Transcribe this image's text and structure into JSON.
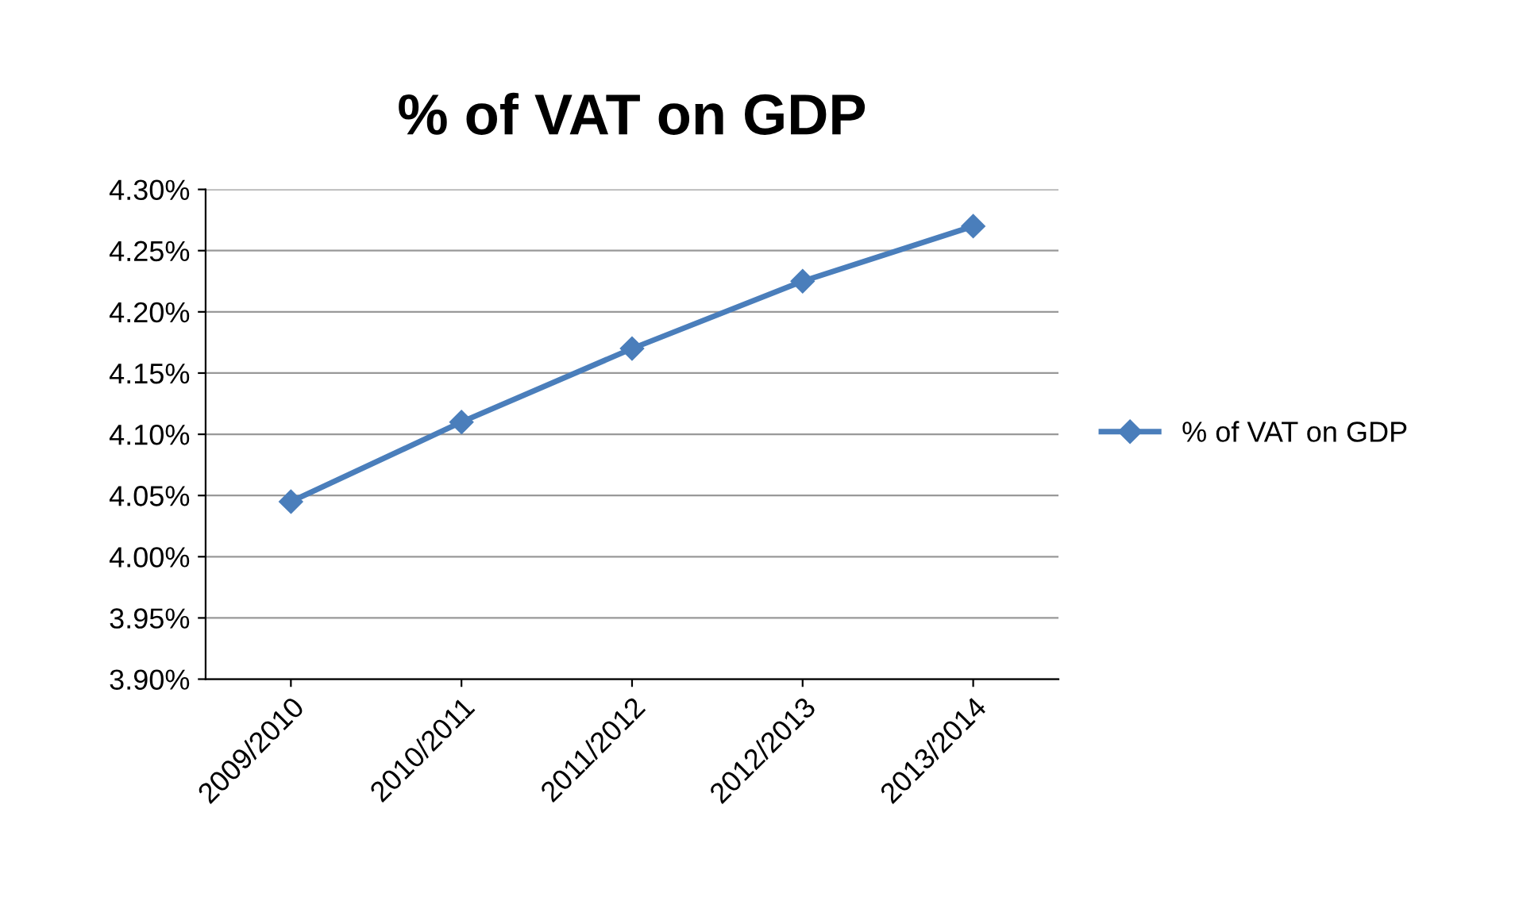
{
  "chart_data": {
    "type": "line",
    "title": "% of VAT on GDP",
    "categories": [
      "2009/2010",
      "2010/2011",
      "2011/2012",
      "2012/2013",
      "2013/2014"
    ],
    "series": [
      {
        "name": "% of VAT on GDP",
        "color": "#4a7ebb",
        "values": [
          4.045,
          4.11,
          4.17,
          4.225,
          4.27
        ]
      }
    ],
    "ylim": [
      3.9,
      4.3
    ],
    "yticks": [
      {
        "value": 3.9,
        "label": "3.90%"
      },
      {
        "value": 3.95,
        "label": "3.95%"
      },
      {
        "value": 4.0,
        "label": "4.00%"
      },
      {
        "value": 4.05,
        "label": "4.05%"
      },
      {
        "value": 4.1,
        "label": "4.10%"
      },
      {
        "value": 4.15,
        "label": "4.15%"
      },
      {
        "value": 4.2,
        "label": "4.20%"
      },
      {
        "value": 4.25,
        "label": "4.25%"
      },
      {
        "value": 4.3,
        "label": "4.30%"
      }
    ],
    "grid": "y",
    "legend": "right",
    "marker": "diamond",
    "line_style": "solid"
  }
}
